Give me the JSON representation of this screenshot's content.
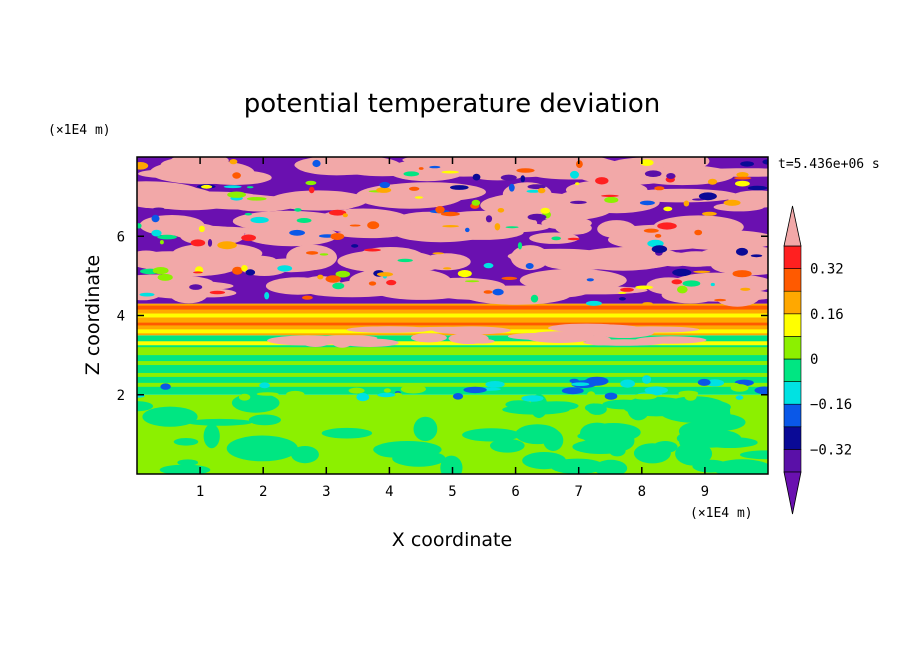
{
  "chart_data": {
    "type": "heatmap",
    "title": "potential temperature deviation",
    "xlabel": "X coordinate",
    "ylabel": "Z coordinate",
    "x_unit": "(×1E4 m)",
    "y_unit": "(×1E4 m)",
    "time_label": "t=5.436e+06 s",
    "x_ticks": [
      "1",
      "2",
      "3",
      "4",
      "5",
      "6",
      "7",
      "8",
      "9"
    ],
    "x_tick_values": [
      1,
      2,
      3,
      4,
      5,
      6,
      7,
      8,
      9
    ],
    "y_ticks": [
      "2",
      "4",
      "6"
    ],
    "y_tick_values": [
      2,
      4,
      6
    ],
    "xlim": [
      0,
      10
    ],
    "ylim": [
      0,
      8
    ],
    "colorbar": {
      "labels": [
        "0.32",
        "0.16",
        "0",
        "−0.16",
        "−0.32"
      ],
      "label_values": [
        0.32,
        0.16,
        0,
        -0.16,
        -0.32
      ],
      "levels": [
        -0.4,
        -0.32,
        -0.24,
        -0.16,
        -0.08,
        0,
        0.08,
        0.16,
        0.24,
        0.32,
        0.4
      ],
      "colors": [
        "#5a10a8",
        "#0a0a96",
        "#0a58e8",
        "#00e2e2",
        "#00e682",
        "#8cf000",
        "#ffff00",
        "#ffa800",
        "#ff5a00",
        "#ff2020"
      ],
      "over_color": "#f2a8a8",
      "under_color": "#6a10b0"
    },
    "regions": [
      {
        "z_range": [
          0,
          2
        ],
        "description_value": "mostly 0 to 0.08 with -0.08 to 0 eddies"
      },
      {
        "z_range": [
          2,
          3.5
        ],
        "description_value": "mostly -0.08 to 0.08 horizontal bands"
      },
      {
        "z_range": [
          3.5,
          4.3
        ],
        "description_value": "0.08 to 0.24 bands"
      },
      {
        "z_range": [
          4.3,
          8
        ],
        "description_value": "alternating > 0.40 and < -0.40 layers"
      }
    ]
  }
}
